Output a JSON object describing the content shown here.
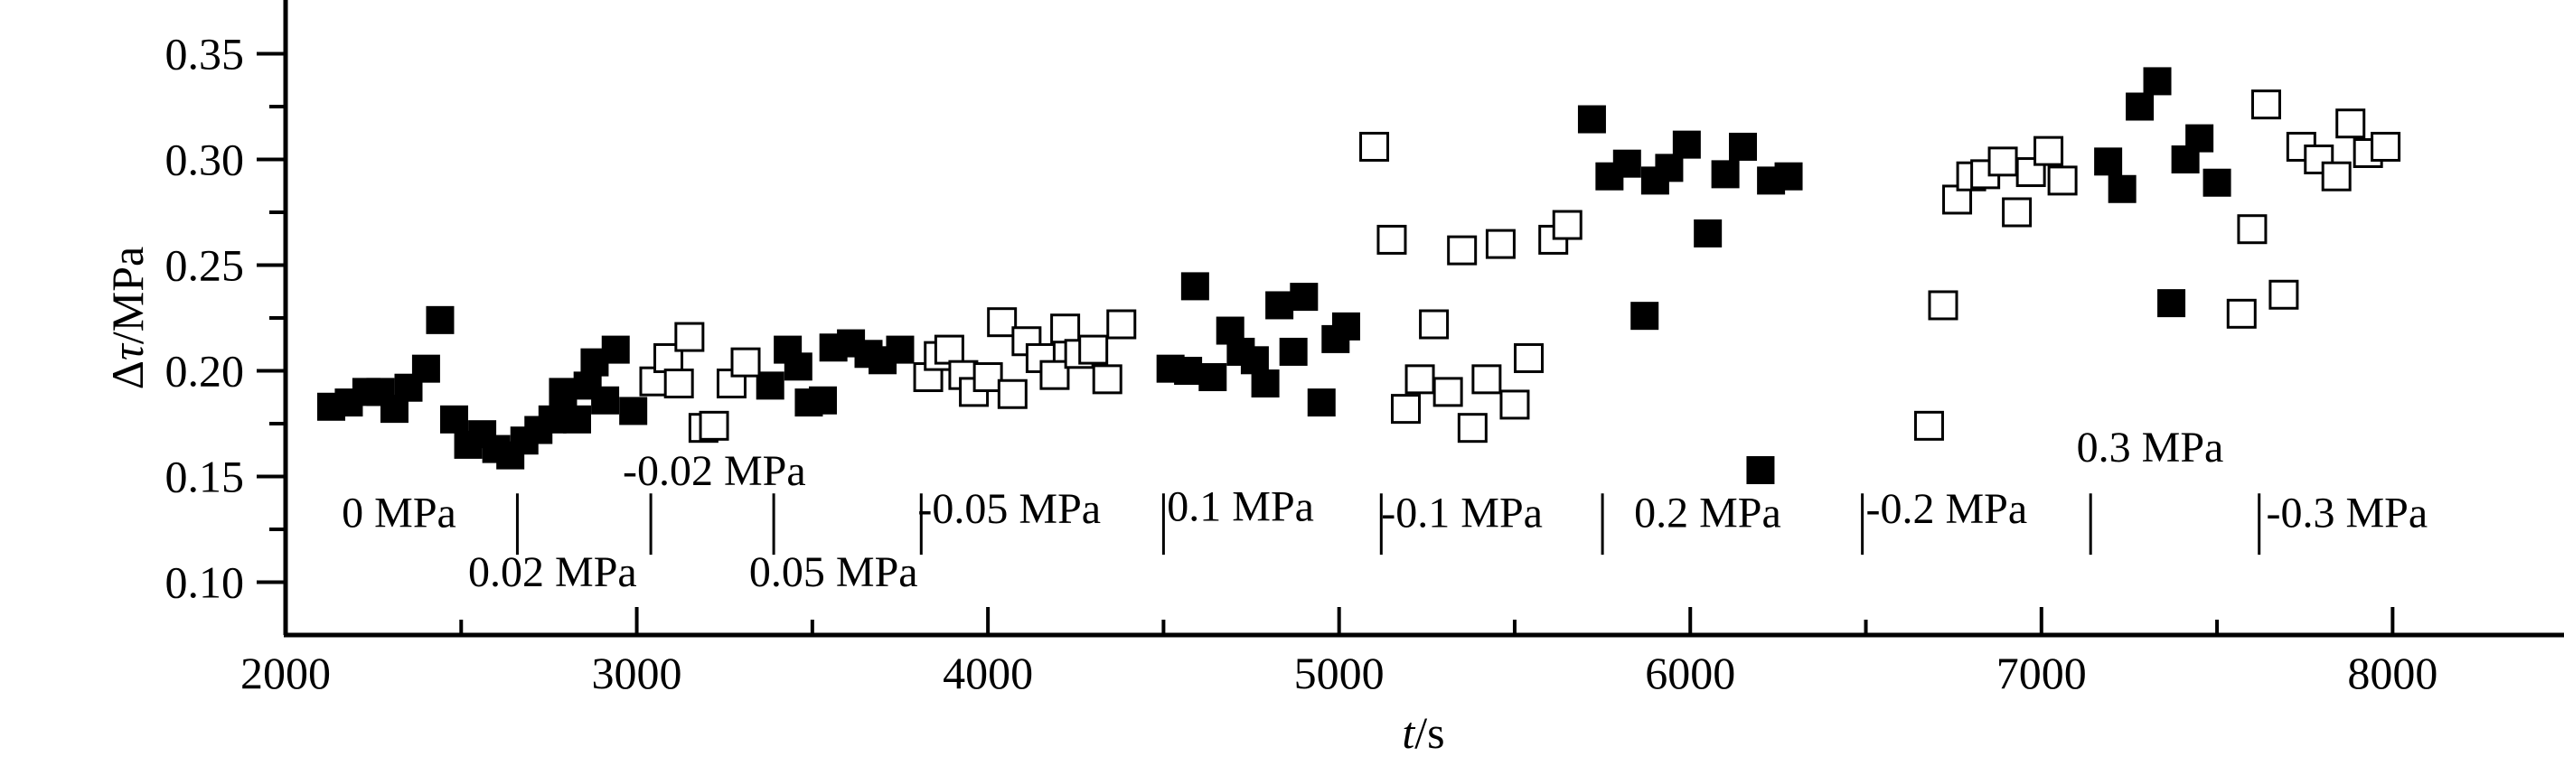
{
  "chart_data": {
    "type": "scatter",
    "xlabel_italic": "t",
    "xlabel_unit": "/s",
    "ylabel_prefix": "Δ",
    "ylabel_italic": "τ",
    "ylabel_unit": "/MPa",
    "xlim": [
      2000,
      8500
    ],
    "ylim": [
      0.075,
      0.375
    ],
    "x_ticks": [
      2000,
      3000,
      4000,
      5000,
      6000,
      7000,
      8000
    ],
    "x_tick_labels": [
      "2000",
      "3000",
      "4000",
      "5000",
      "6000",
      "7000",
      "8000"
    ],
    "y_ticks": [
      0.1,
      0.15,
      0.2,
      0.25,
      0.3,
      0.35
    ],
    "y_tick_labels": [
      "0.10",
      "0.15",
      "0.20",
      "0.25",
      "0.30",
      "0.35"
    ],
    "grid": false,
    "stage_boundaries": [
      {
        "x": 2660,
        "y_bottom": 0.113,
        "y_top": 0.142
      },
      {
        "x": 3040,
        "y_bottom": 0.113,
        "y_top": 0.142
      },
      {
        "x": 3390,
        "y_bottom": 0.113,
        "y_top": 0.142
      },
      {
        "x": 3810,
        "y_bottom": 0.113,
        "y_top": 0.142
      },
      {
        "x": 4500,
        "y_bottom": 0.113,
        "y_top": 0.142
      },
      {
        "x": 5120,
        "y_bottom": 0.113,
        "y_top": 0.142
      },
      {
        "x": 5750,
        "y_bottom": 0.113,
        "y_top": 0.142
      },
      {
        "x": 6490,
        "y_bottom": 0.113,
        "y_top": 0.142
      },
      {
        "x": 7140,
        "y_bottom": 0.113,
        "y_top": 0.142
      },
      {
        "x": 7620,
        "y_bottom": 0.113,
        "y_top": 0.142
      }
    ],
    "stage_labels": [
      {
        "text": "0 MPa",
        "x": 2160,
        "y": 0.126
      },
      {
        "text": "0.02 MPa",
        "x": 2520,
        "y": 0.098
      },
      {
        "text": "-0.02 MPa",
        "x": 2960,
        "y": 0.146
      },
      {
        "text": "0.05 MPa",
        "x": 3320,
        "y": 0.098
      },
      {
        "text": "-0.05 MPa",
        "x": 3800,
        "y": 0.128
      },
      {
        "text": "0.1 MPa",
        "x": 4510,
        "y": 0.129
      },
      {
        "text": "-0.1 MPa",
        "x": 5120,
        "y": 0.126
      },
      {
        "text": "0.2 MPa",
        "x": 5840,
        "y": 0.126
      },
      {
        "text": "-0.2 MPa",
        "x": 6500,
        "y": 0.128
      },
      {
        "text": "0.3 MPa",
        "x": 7100,
        "y": 0.157
      },
      {
        "text": "-0.3 MPa",
        "x": 7640,
        "y": 0.126
      }
    ],
    "series": [
      {
        "marker": "filled-square",
        "color": "#000000",
        "points": [
          [
            2130,
            0.183
          ],
          [
            2180,
            0.185
          ],
          [
            2230,
            0.19
          ],
          [
            2270,
            0.19
          ],
          [
            2310,
            0.182
          ],
          [
            2350,
            0.192
          ],
          [
            2400,
            0.201
          ],
          [
            2440,
            0.224
          ],
          [
            2480,
            0.177
          ],
          [
            2520,
            0.165
          ],
          [
            2560,
            0.17
          ],
          [
            2600,
            0.163
          ],
          [
            2640,
            0.16
          ],
          [
            2680,
            0.167
          ],
          [
            2720,
            0.172
          ],
          [
            2760,
            0.177
          ],
          [
            2790,
            0.19
          ],
          [
            2830,
            0.177
          ],
          [
            2860,
            0.193
          ],
          [
            2880,
            0.204
          ],
          [
            2910,
            0.186
          ],
          [
            2940,
            0.21
          ],
          [
            2990,
            0.181
          ],
          [
            3380,
            0.193
          ],
          [
            3430,
            0.21
          ],
          [
            3460,
            0.202
          ],
          [
            3490,
            0.185
          ],
          [
            3530,
            0.186
          ],
          [
            3560,
            0.211
          ],
          [
            3610,
            0.213
          ],
          [
            3660,
            0.208
          ],
          [
            3700,
            0.205
          ],
          [
            3750,
            0.21
          ],
          [
            4520,
            0.201
          ],
          [
            4570,
            0.2
          ],
          [
            4590,
            0.24
          ],
          [
            4640,
            0.197
          ],
          [
            4690,
            0.219
          ],
          [
            4720,
            0.209
          ],
          [
            4760,
            0.205
          ],
          [
            4790,
            0.194
          ],
          [
            4830,
            0.231
          ],
          [
            4870,
            0.209
          ],
          [
            4900,
            0.235
          ],
          [
            4950,
            0.185
          ],
          [
            4990,
            0.215
          ],
          [
            5020,
            0.221
          ],
          [
            5720,
            0.319
          ],
          [
            5770,
            0.292
          ],
          [
            5820,
            0.298
          ],
          [
            5870,
            0.226
          ],
          [
            5900,
            0.29
          ],
          [
            5940,
            0.296
          ],
          [
            5990,
            0.307
          ],
          [
            6050,
            0.265
          ],
          [
            6100,
            0.293
          ],
          [
            6150,
            0.306
          ],
          [
            6200,
            0.153
          ],
          [
            6230,
            0.29
          ],
          [
            6280,
            0.292
          ],
          [
            7190,
            0.299
          ],
          [
            7230,
            0.286
          ],
          [
            7280,
            0.325
          ],
          [
            7330,
            0.337
          ],
          [
            7370,
            0.232
          ],
          [
            7410,
            0.3
          ],
          [
            7450,
            0.31
          ],
          [
            7500,
            0.289
          ]
        ]
      },
      {
        "marker": "open-square",
        "color": "#000000",
        "points": [
          [
            3050,
            0.195
          ],
          [
            3090,
            0.206
          ],
          [
            3120,
            0.194
          ],
          [
            3150,
            0.216
          ],
          [
            3190,
            0.173
          ],
          [
            3220,
            0.174
          ],
          [
            3270,
            0.194
          ],
          [
            3310,
            0.204
          ],
          [
            3830,
            0.197
          ],
          [
            3860,
            0.207
          ],
          [
            3890,
            0.21
          ],
          [
            3930,
            0.198
          ],
          [
            3960,
            0.19
          ],
          [
            4000,
            0.197
          ],
          [
            4040,
            0.223
          ],
          [
            4070,
            0.189
          ],
          [
            4110,
            0.214
          ],
          [
            4150,
            0.206
          ],
          [
            4190,
            0.198
          ],
          [
            4220,
            0.22
          ],
          [
            4260,
            0.208
          ],
          [
            4300,
            0.21
          ],
          [
            4340,
            0.196
          ],
          [
            4380,
            0.222
          ],
          [
            5100,
            0.306
          ],
          [
            5150,
            0.262
          ],
          [
            5190,
            0.182
          ],
          [
            5230,
            0.196
          ],
          [
            5270,
            0.222
          ],
          [
            5310,
            0.19
          ],
          [
            5350,
            0.257
          ],
          [
            5380,
            0.173
          ],
          [
            5420,
            0.196
          ],
          [
            5460,
            0.26
          ],
          [
            5500,
            0.184
          ],
          [
            5540,
            0.206
          ],
          [
            5610,
            0.262
          ],
          [
            5650,
            0.269
          ],
          [
            6680,
            0.174
          ],
          [
            6720,
            0.231
          ],
          [
            6760,
            0.281
          ],
          [
            6800,
            0.292
          ],
          [
            6840,
            0.293
          ],
          [
            6890,
            0.299
          ],
          [
            6930,
            0.275
          ],
          [
            6970,
            0.294
          ],
          [
            7020,
            0.304
          ],
          [
            7060,
            0.29
          ],
          [
            7570,
            0.227
          ],
          [
            7600,
            0.267
          ],
          [
            7640,
            0.326
          ],
          [
            7690,
            0.236
          ],
          [
            7740,
            0.306
          ],
          [
            7790,
            0.3
          ],
          [
            7840,
            0.292
          ],
          [
            7880,
            0.317
          ],
          [
            7930,
            0.303
          ],
          [
            7980,
            0.306
          ]
        ]
      }
    ]
  }
}
